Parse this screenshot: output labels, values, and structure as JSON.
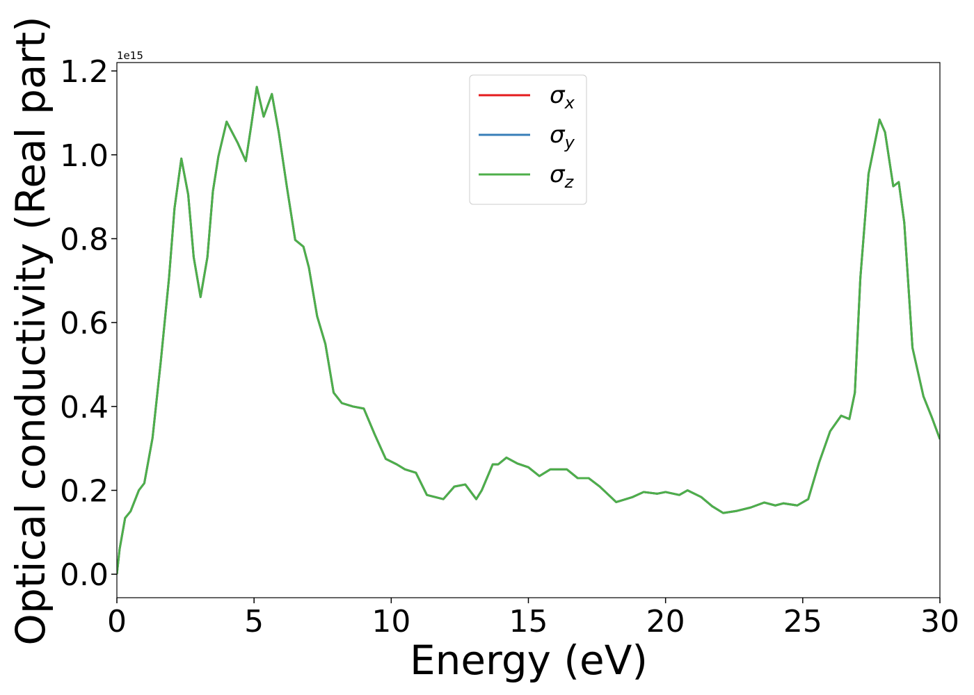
{
  "chart_data": {
    "type": "line",
    "xlabel": "Energy (eV)",
    "ylabel": "Optical conductivity (Real part)",
    "y_offset_label": "1e15",
    "x": [
      0,
      0.1,
      0.3,
      0.5,
      0.8,
      1.0,
      1.3,
      1.6,
      1.9,
      2.1,
      2.35,
      2.6,
      2.8,
      3.05,
      3.3,
      3.5,
      3.7,
      4.0,
      4.2,
      4.4,
      4.7,
      4.9,
      5.1,
      5.35,
      5.65,
      5.9,
      6.2,
      6.5,
      6.8,
      7.0,
      7.3,
      7.6,
      7.9,
      8.2,
      8.6,
      9.0,
      9.4,
      9.8,
      10.2,
      10.5,
      10.9,
      11.3,
      11.6,
      11.9,
      12.3,
      12.7,
      13.1,
      13.3,
      13.7,
      13.9,
      14.2,
      14.6,
      15.0,
      15.4,
      15.8,
      16.4,
      16.8,
      17.2,
      17.6,
      18.2,
      18.8,
      19.2,
      19.7,
      20.0,
      20.5,
      20.8,
      21.3,
      21.7,
      22.1,
      22.6,
      23.1,
      23.6,
      24.0,
      24.3,
      24.8,
      25.2,
      25.6,
      26.0,
      26.4,
      26.7,
      26.9,
      27.1,
      27.4,
      27.8,
      28.0,
      28.3,
      28.5,
      28.7,
      29.0,
      29.4,
      29.7,
      30.0
    ],
    "series": [
      {
        "name": "σx",
        "color": "#e41a1c",
        "values": [
          0,
          0.06,
          0.134,
          0.15,
          0.2,
          0.217,
          0.325,
          0.507,
          0.706,
          0.872,
          0.991,
          0.905,
          0.756,
          0.661,
          0.756,
          0.913,
          0.996,
          1.079,
          1.054,
          1.029,
          0.985,
          1.071,
          1.162,
          1.091,
          1.145,
          1.054,
          0.922,
          0.797,
          0.781,
          0.731,
          0.615,
          0.549,
          0.433,
          0.408,
          0.4,
          0.395,
          0.333,
          0.275,
          0.262,
          0.25,
          0.242,
          0.189,
          0.184,
          0.179,
          0.209,
          0.214,
          0.179,
          0.2,
          0.262,
          0.262,
          0.278,
          0.264,
          0.255,
          0.234,
          0.25,
          0.25,
          0.229,
          0.229,
          0.209,
          0.172,
          0.184,
          0.196,
          0.192,
          0.196,
          0.189,
          0.2,
          0.184,
          0.162,
          0.146,
          0.151,
          0.159,
          0.171,
          0.164,
          0.169,
          0.164,
          0.179,
          0.267,
          0.341,
          0.378,
          0.37,
          0.433,
          0.706,
          0.955,
          1.084,
          1.054,
          0.925,
          0.935,
          0.839,
          0.54,
          0.424,
          0.375,
          0.322
        ]
      },
      {
        "name": "σy",
        "color": "#377eb8",
        "values": [
          0,
          0.06,
          0.134,
          0.15,
          0.2,
          0.217,
          0.325,
          0.507,
          0.706,
          0.872,
          0.991,
          0.905,
          0.756,
          0.661,
          0.756,
          0.913,
          0.996,
          1.079,
          1.054,
          1.029,
          0.985,
          1.071,
          1.162,
          1.091,
          1.145,
          1.054,
          0.922,
          0.797,
          0.781,
          0.731,
          0.615,
          0.549,
          0.433,
          0.408,
          0.4,
          0.395,
          0.333,
          0.275,
          0.262,
          0.25,
          0.242,
          0.189,
          0.184,
          0.179,
          0.209,
          0.214,
          0.179,
          0.2,
          0.262,
          0.262,
          0.278,
          0.264,
          0.255,
          0.234,
          0.25,
          0.25,
          0.229,
          0.229,
          0.209,
          0.172,
          0.184,
          0.196,
          0.192,
          0.196,
          0.189,
          0.2,
          0.184,
          0.162,
          0.146,
          0.151,
          0.159,
          0.171,
          0.164,
          0.169,
          0.164,
          0.179,
          0.267,
          0.341,
          0.378,
          0.37,
          0.433,
          0.706,
          0.955,
          1.084,
          1.054,
          0.925,
          0.935,
          0.839,
          0.54,
          0.424,
          0.375,
          0.322
        ]
      },
      {
        "name": "σz",
        "color": "#4daf4a",
        "values": [
          0,
          0.06,
          0.134,
          0.15,
          0.2,
          0.217,
          0.325,
          0.507,
          0.706,
          0.872,
          0.991,
          0.905,
          0.756,
          0.661,
          0.756,
          0.913,
          0.996,
          1.079,
          1.054,
          1.029,
          0.985,
          1.071,
          1.162,
          1.091,
          1.145,
          1.054,
          0.922,
          0.797,
          0.781,
          0.731,
          0.615,
          0.549,
          0.433,
          0.408,
          0.4,
          0.395,
          0.333,
          0.275,
          0.262,
          0.25,
          0.242,
          0.189,
          0.184,
          0.179,
          0.209,
          0.214,
          0.179,
          0.2,
          0.262,
          0.262,
          0.278,
          0.264,
          0.255,
          0.234,
          0.25,
          0.25,
          0.229,
          0.229,
          0.209,
          0.172,
          0.184,
          0.196,
          0.192,
          0.196,
          0.189,
          0.2,
          0.184,
          0.162,
          0.146,
          0.151,
          0.159,
          0.171,
          0.164,
          0.169,
          0.164,
          0.179,
          0.267,
          0.341,
          0.378,
          0.37,
          0.433,
          0.706,
          0.955,
          1.084,
          1.054,
          0.925,
          0.935,
          0.839,
          0.54,
          0.424,
          0.375,
          0.322
        ]
      }
    ],
    "xlim": [
      0,
      30
    ],
    "xticks": [
      0,
      5,
      10,
      15,
      20,
      25,
      30
    ],
    "ylim": [
      -0.056,
      1.22
    ],
    "yticks": [
      {
        "value": 0,
        "label": "0.0"
      },
      0.2,
      0.4,
      0.6,
      0.8,
      {
        "value": 1,
        "label": "1.0"
      },
      1.2
    ],
    "grid": false,
    "legend": "upper center"
  }
}
